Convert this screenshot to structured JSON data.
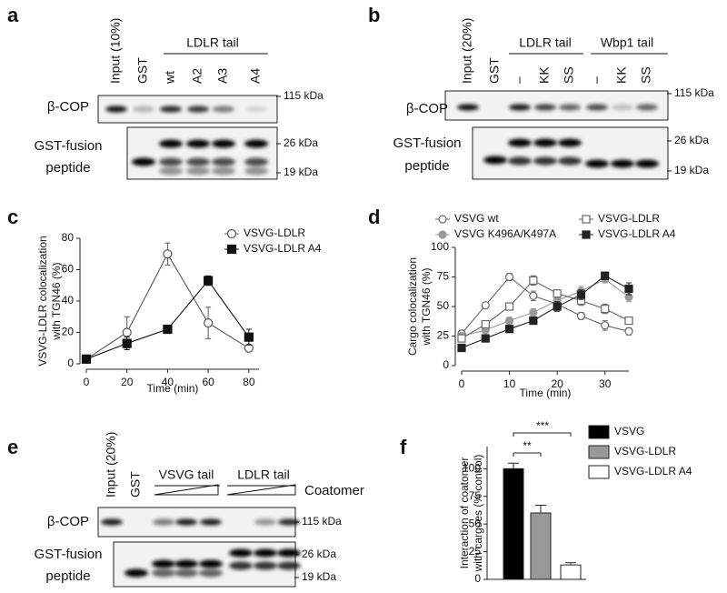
{
  "letters": [
    "a",
    "b",
    "c",
    "d",
    "e",
    "f"
  ],
  "blots": [
    {
      "lanes": [
        "Input (10%)",
        "GST",
        "wt",
        "A2",
        "A3",
        "A4"
      ],
      "groups": [
        "LDLR tail"
      ],
      "rows": [
        [
          "β-COP"
        ],
        [
          "GST-fusion",
          "peptide"
        ]
      ],
      "markers": [
        "115 kDa",
        "26 kDa",
        "19 kDa"
      ]
    },
    {
      "lanes": [
        "Input (20%)",
        "GST",
        "–",
        "KK",
        "SS",
        "–",
        "KK",
        "SS"
      ],
      "groups": [
        "LDLR tail",
        "Wbp1 tail"
      ],
      "rows": [
        [
          "β-COP"
        ],
        [
          "GST-fusion",
          "peptide"
        ]
      ],
      "markers": [
        "115 kDa",
        "26 kDa",
        "19 kDa"
      ]
    },
    {
      "lanes": [
        "Input (20%)",
        "GST"
      ],
      "groups": [
        "VSVG tail",
        "LDLR tail"
      ],
      "treatment": "Coatomer",
      "rows": [
        [
          "β-COP"
        ],
        [
          "GST-fusion",
          "peptide"
        ]
      ],
      "markers": [
        "115 kDa",
        "26 kDa",
        "19 kDa"
      ]
    }
  ],
  "chart_data": [
    {
      "type": "line",
      "ylabel": [
        "VSVG-LDLR colocalization",
        "with TGN46 (%)"
      ],
      "xlabel": "Time (min)",
      "x": [
        0,
        20,
        40,
        60,
        80
      ],
      "xlim": [
        0,
        85
      ],
      "xticks": [
        0,
        20,
        40,
        60,
        80
      ],
      "ylim": [
        0,
        80
      ],
      "yticks": [
        0,
        20,
        40,
        60,
        80
      ],
      "series": [
        {
          "name": "VSVG-LDLR",
          "color": "#555555",
          "marker": "circle",
          "filled": false,
          "values": [
            3,
            20,
            70,
            26,
            10
          ],
          "errors": [
            0,
            10,
            7,
            10,
            1
          ]
        },
        {
          "name": "VSVG-LDLR A4",
          "color": "#111111",
          "marker": "square",
          "filled": true,
          "values": [
            3,
            13,
            22,
            53,
            17
          ],
          "errors": [
            0,
            4,
            1,
            3,
            5
          ]
        }
      ]
    },
    {
      "type": "line",
      "ylabel": [
        "Cargo colocalization",
        "with TGN46 (%)"
      ],
      "xlabel": "Time (min)",
      "x": [
        0,
        5,
        10,
        15,
        20,
        25,
        30,
        35
      ],
      "xlim": [
        0,
        35
      ],
      "xticks": [
        0,
        10,
        20,
        30
      ],
      "ylim": [
        0,
        100
      ],
      "yticks": [
        0,
        25,
        50,
        75,
        100
      ],
      "series": [
        {
          "name": "VSVG wt",
          "color": "#666666",
          "marker": "circle",
          "filled": false,
          "values": [
            27,
            51,
            75,
            59,
            52,
            42,
            34,
            29
          ],
          "errors": [
            3,
            2,
            3,
            4,
            3,
            3,
            4,
            3
          ]
        },
        {
          "name": "VSVG K496A/K497A",
          "color": "#999999",
          "marker": "circle",
          "filled": true,
          "values": [
            25,
            30,
            38,
            45,
            55,
            63,
            73,
            58
          ],
          "errors": [
            2,
            2,
            3,
            3,
            3,
            4,
            3,
            4
          ]
        },
        {
          "name": "VSVG-LDLR",
          "color": "#666666",
          "marker": "square",
          "filled": false,
          "values": [
            23,
            35,
            50,
            72,
            61,
            55,
            48,
            38
          ],
          "errors": [
            2,
            3,
            3,
            4,
            3,
            4,
            4,
            3
          ]
        },
        {
          "name": "VSVG-LDLR A4",
          "color": "#222222",
          "marker": "square",
          "filled": true,
          "values": [
            15,
            23,
            31,
            38,
            50,
            60,
            76,
            65
          ],
          "errors": [
            2,
            2,
            3,
            3,
            4,
            4,
            3,
            5
          ]
        }
      ]
    },
    {
      "type": "bar",
      "ylabel": [
        "Interaction of coatomer",
        "with cargoes (% control)"
      ],
      "ylim": [
        0,
        120
      ],
      "yticks": [
        0,
        25,
        50,
        75,
        100
      ],
      "series": [
        {
          "name": "VSVG",
          "color": "#000000",
          "values": [
            100
          ],
          "errors": [
            5
          ]
        },
        {
          "name": "VSVG-LDLR",
          "color": "#999999",
          "values": [
            60
          ],
          "errors": [
            7
          ]
        },
        {
          "name": "VSVG-LDLR A4",
          "color": "#ffffff",
          "values": [
            13
          ],
          "errors": [
            2
          ]
        }
      ],
      "annotations": [
        "**",
        "***"
      ]
    }
  ]
}
